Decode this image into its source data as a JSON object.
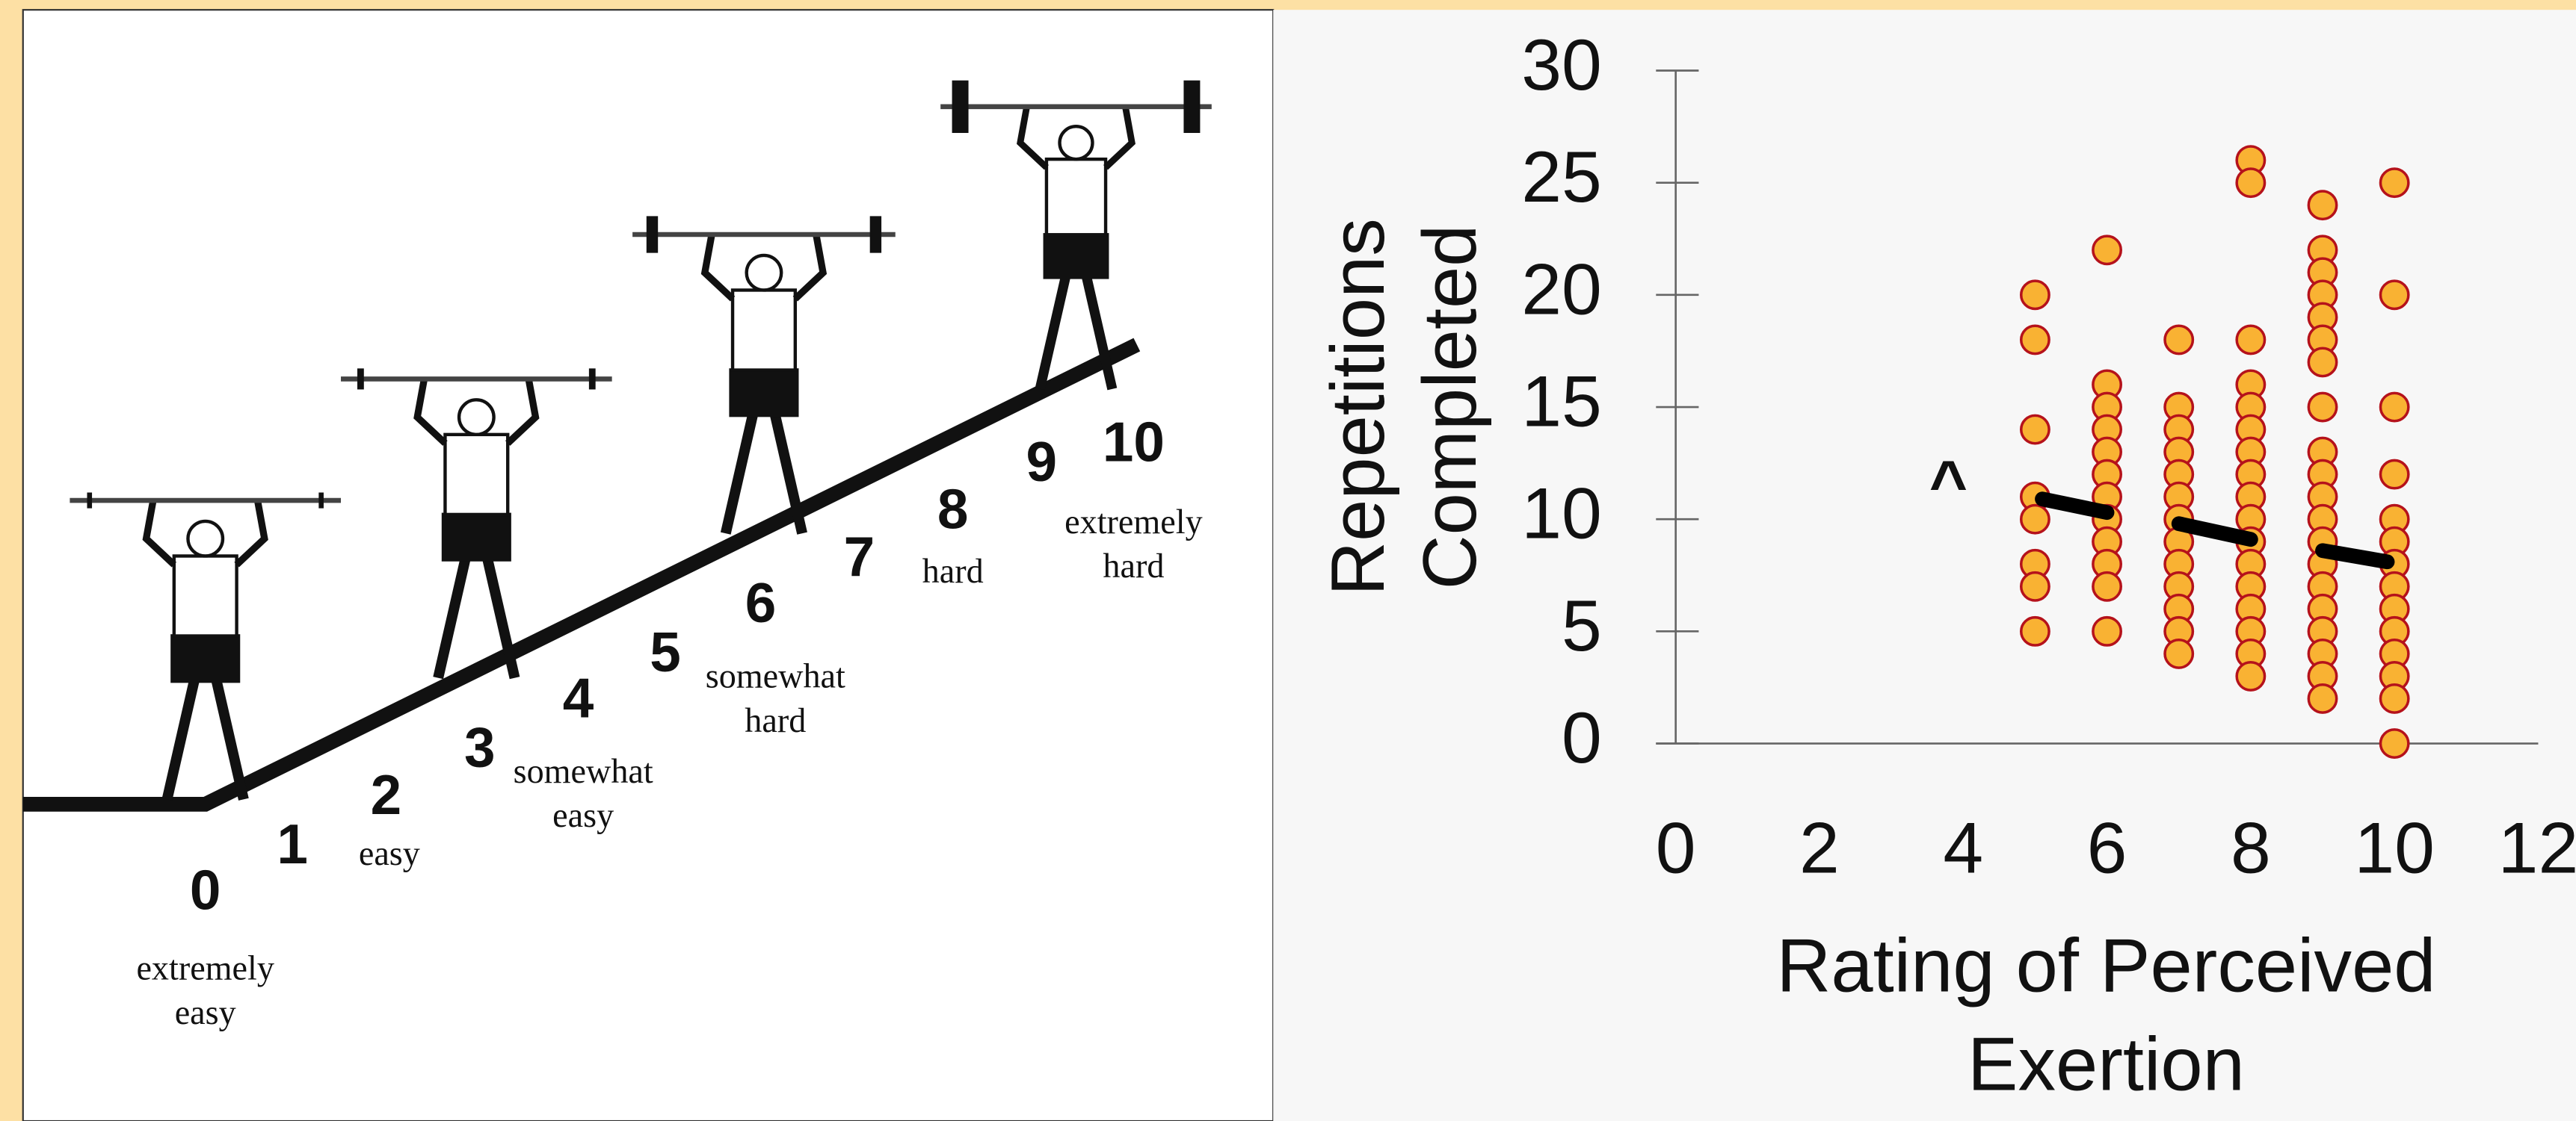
{
  "rpe_scale": [
    {
      "number": "0",
      "descriptor": [
        "extremely",
        "easy"
      ]
    },
    {
      "number": "1",
      "descriptor": []
    },
    {
      "number": "2",
      "descriptor": [
        "easy"
      ]
    },
    {
      "number": "3",
      "descriptor": []
    },
    {
      "number": "4",
      "descriptor": [
        "somewhat",
        "easy"
      ]
    },
    {
      "number": "5",
      "descriptor": []
    },
    {
      "number": "6",
      "descriptor": [
        "somewhat",
        "hard"
      ]
    },
    {
      "number": "7",
      "descriptor": []
    },
    {
      "number": "8",
      "descriptor": [
        "hard"
      ]
    },
    {
      "number": "9",
      "descriptor": []
    },
    {
      "number": "10",
      "descriptor": [
        "extremely",
        "hard"
      ]
    }
  ],
  "chart_data": {
    "type": "scatter",
    "xlabel": [
      "Rating of Perceived",
      "Exertion"
    ],
    "ylabel": [
      "Repetitions",
      "Completed"
    ],
    "annotation": "^",
    "color": "#f9b233",
    "edgecolor": "#b5121b",
    "xlim": [
      0,
      12
    ],
    "xticks": [
      0,
      2,
      4,
      6,
      8,
      10,
      12
    ],
    "ylim": [
      0,
      30
    ],
    "yticks": [
      0,
      5,
      10,
      15,
      20,
      25,
      30
    ],
    "x": [
      5,
      5,
      5,
      5,
      5,
      5,
      5,
      5,
      6,
      6,
      6,
      6,
      6,
      6,
      6,
      6,
      6,
      6,
      6,
      6,
      7,
      7,
      7,
      7,
      7,
      7,
      7,
      7,
      7,
      7,
      7,
      7,
      7,
      8,
      8,
      8,
      8,
      8,
      8,
      8,
      8,
      8,
      8,
      8,
      8,
      8,
      8,
      8,
      8,
      8,
      9,
      9,
      9,
      9,
      9,
      9,
      9,
      9,
      9,
      9,
      9,
      9,
      9,
      9,
      9,
      9,
      9,
      9,
      9,
      9,
      10,
      10,
      10,
      10,
      10,
      10,
      10,
      10,
      10,
      10,
      10,
      10,
      10,
      10
    ],
    "y": [
      20,
      18,
      14,
      11,
      10,
      8,
      7,
      5,
      22,
      16,
      15,
      14,
      13,
      12,
      11,
      10,
      9,
      8,
      7,
      5,
      18,
      15,
      14,
      13,
      12,
      11,
      10,
      9,
      8,
      7,
      6,
      5,
      4,
      26,
      25,
      18,
      16,
      15,
      14,
      13,
      12,
      11,
      10,
      9,
      8,
      7,
      6,
      5,
      4,
      3,
      24,
      22,
      21,
      20,
      19,
      18,
      17,
      15,
      13,
      12,
      11,
      10,
      9,
      8,
      7,
      6,
      5,
      4,
      3,
      2,
      25,
      20,
      15,
      12,
      10,
      9,
      8,
      7,
      6,
      5,
      4,
      3,
      2,
      0
    ],
    "trend": [
      {
        "x": [
          5.1,
          6
        ],
        "y": [
          10.9,
          10.3
        ]
      },
      {
        "x": [
          7,
          8
        ],
        "y": [
          9.8,
          9.1
        ]
      },
      {
        "x": [
          9,
          9.9
        ],
        "y": [
          8.6,
          8.1
        ]
      }
    ],
    "trend_color": "#000000"
  }
}
